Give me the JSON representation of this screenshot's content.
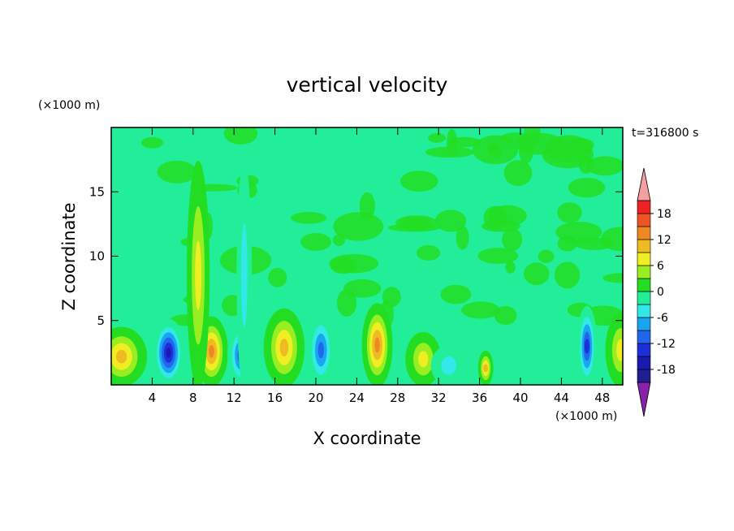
{
  "chart_data": {
    "type": "heatmap",
    "title": "vertical velocity",
    "xlabel": "X coordinate",
    "ylabel": "Z coordinate",
    "x_unit": "(×1000 m)",
    "y_unit": "(×1000 m)",
    "time_label": "t=316800 s",
    "xlim": [
      0,
      50
    ],
    "ylim": [
      0,
      20
    ],
    "x_ticks": [
      4,
      8,
      12,
      16,
      20,
      24,
      28,
      32,
      36,
      40,
      44,
      48
    ],
    "y_ticks": [
      5,
      10,
      15
    ],
    "colorbar": {
      "levels": [
        -21,
        -18,
        -15,
        -12,
        -9,
        -6,
        -3,
        0,
        3,
        6,
        9,
        12,
        15,
        18,
        21
      ],
      "tick_labels": [
        "18",
        "12",
        "6",
        "0",
        "-6",
        "-12",
        "-18"
      ],
      "tick_values": [
        18,
        12,
        6,
        0,
        -6,
        -12,
        -18
      ],
      "colors": [
        "#1f1f8f",
        "#1a1ab0",
        "#1c2fd8",
        "#2266ee",
        "#1aa6ee",
        "#33e8e8",
        "#22ee99",
        "#22dd22",
        "#99ee22",
        "#eeee22",
        "#eebb22",
        "#ee8822",
        "#ee5522",
        "#ee2222"
      ],
      "under_color": "#8822aa",
      "over_color": "#f4a0a0"
    },
    "background_color": "#22ee99",
    "features": [
      {
        "x": 1.0,
        "z": 2.2,
        "w": 2.0,
        "value": 9
      },
      {
        "x": 5.6,
        "z": 2.5,
        "w": 1.3,
        "value": -15
      },
      {
        "x": 9.8,
        "z": 2.6,
        "w": 1.3,
        "value": 12
      },
      {
        "x": 12.6,
        "z": 2.3,
        "w": 1.0,
        "value": -11
      },
      {
        "x": 16.9,
        "z": 2.9,
        "w": 1.6,
        "value": 11
      },
      {
        "x": 20.5,
        "z": 2.7,
        "w": 1.1,
        "value": -10
      },
      {
        "x": 26.0,
        "z": 3.1,
        "w": 1.2,
        "value": 12
      },
      {
        "x": 30.5,
        "z": 2.0,
        "w": 1.4,
        "value": 7
      },
      {
        "x": 33.0,
        "z": 1.5,
        "w": 1.4,
        "value": -5
      },
      {
        "x": 36.6,
        "z": 1.3,
        "w": 0.6,
        "value": 9
      },
      {
        "x": 46.5,
        "z": 3.0,
        "w": 0.8,
        "value": -13
      },
      {
        "x": 49.8,
        "z": 2.7,
        "w": 1.2,
        "value": 8
      },
      {
        "x": 8.5,
        "z": 8.5,
        "w": 0.9,
        "value": 7
      },
      {
        "x": 13.0,
        "z": 8.5,
        "w": 0.6,
        "value": -4
      }
    ]
  }
}
